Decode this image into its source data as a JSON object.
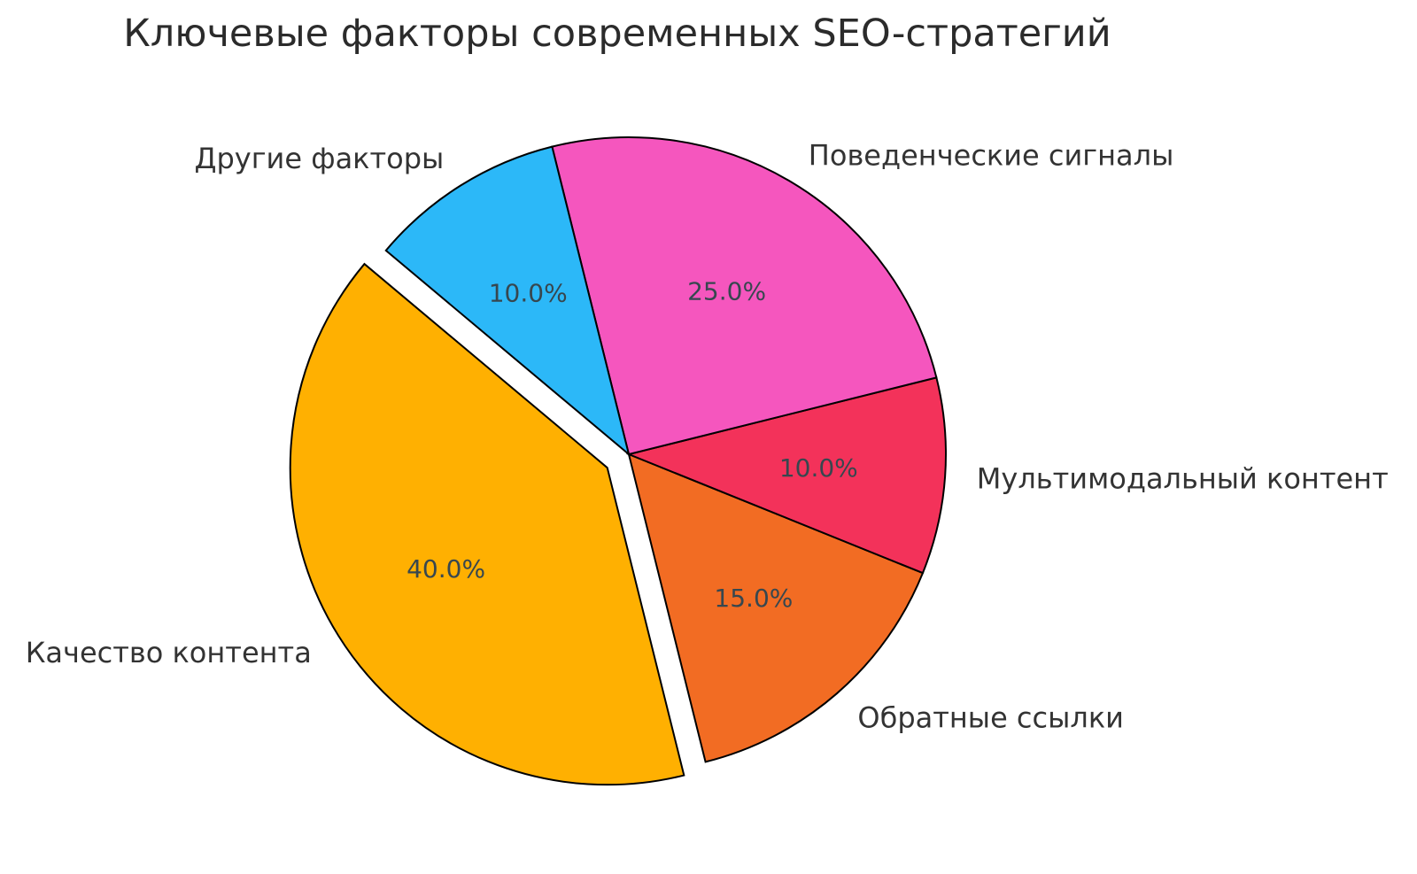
{
  "chart_data": {
    "type": "pie",
    "title": "Ключевые факторы современных SEO-стратегий",
    "slices": [
      {
        "label": "Качество контента",
        "value": 40.0,
        "pct_label": "40.0%",
        "color": "#FFB001",
        "explode": 0.08
      },
      {
        "label": "Обратные ссылки",
        "value": 15.0,
        "pct_label": "15.0%",
        "color": "#F26C23",
        "explode": 0
      },
      {
        "label": "Мультимодальный контент",
        "value": 10.0,
        "pct_label": "10.0%",
        "color": "#F3325A",
        "explode": 0
      },
      {
        "label": "Поведенческие сигналы",
        "value": 25.0,
        "pct_label": "25.0%",
        "color": "#F556BE",
        "explode": 0
      },
      {
        "label": "Другие факторы",
        "value": 10.0,
        "pct_label": "10.0%",
        "color": "#2CB8F8",
        "explode": 0
      }
    ],
    "startangle": 140,
    "counterclock": true,
    "label_distance": 1.1,
    "pct_distance": 0.6,
    "edge_color": "#000000",
    "edge_width": 2,
    "title_color": "#2B2B2B",
    "label_color": "#333333",
    "pct_color": "#37474F",
    "background": "#FFFFFF",
    "legend": "none"
  }
}
